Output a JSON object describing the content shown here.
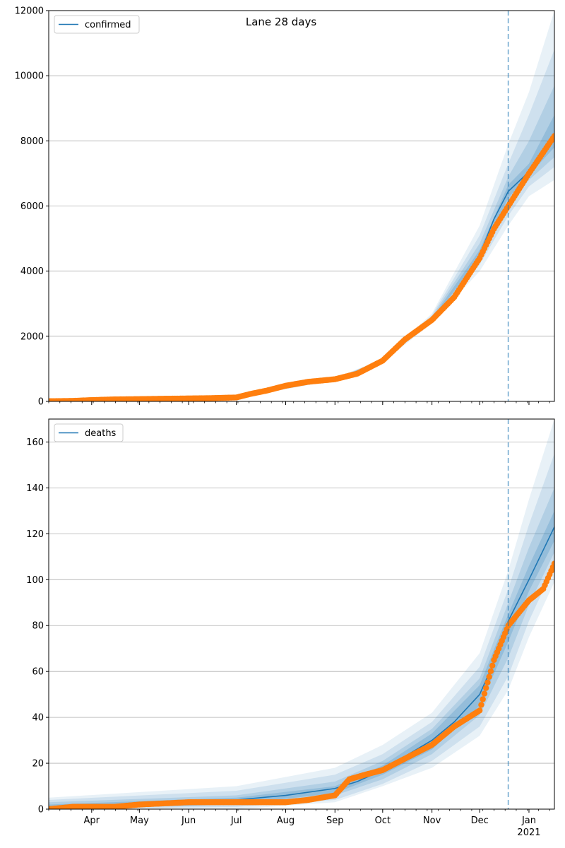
{
  "title": "Lane 28 days",
  "colors": {
    "model": "#1f77b4",
    "observed": "#ff7f0e",
    "band": "#1f77b4",
    "cutoff": "#1f77b4",
    "grid": "#b0b0b0"
  },
  "x_axis": {
    "month_labels": [
      "Apr",
      "May",
      "Jun",
      "Jul",
      "Aug",
      "Sep",
      "Oct",
      "Nov",
      "Dec",
      "Jan"
    ],
    "year_label": "2021"
  },
  "chart_data": [
    {
      "type": "line",
      "legend": "confirmed",
      "legend_position": "top-left",
      "xlim": [
        "2020-03-05",
        "2021-01-17"
      ],
      "ylim": [
        0,
        12000
      ],
      "yticks": [
        0,
        2000,
        4000,
        6000,
        8000,
        10000,
        12000
      ],
      "ytick_labels": [
        "0",
        "2000",
        "4000",
        "6000",
        "8000",
        "10000",
        "12000"
      ],
      "grid": "horizontal",
      "forecast_start": "2020-12-19",
      "observed": {
        "x": [
          "2020-03-05",
          "2020-03-20",
          "2020-04-01",
          "2020-04-15",
          "2020-05-01",
          "2020-05-15",
          "2020-06-01",
          "2020-06-15",
          "2020-07-01",
          "2020-07-10",
          "2020-07-20",
          "2020-08-01",
          "2020-08-15",
          "2020-09-01",
          "2020-09-15",
          "2020-10-01",
          "2020-10-15",
          "2020-11-01",
          "2020-11-15",
          "2020-12-01",
          "2020-12-10",
          "2020-12-19",
          "2021-01-01",
          "2021-01-17"
        ],
        "y": [
          5,
          15,
          40,
          60,
          70,
          80,
          90,
          100,
          120,
          230,
          330,
          480,
          600,
          680,
          850,
          1250,
          1900,
          2500,
          3200,
          4400,
          5300,
          6000,
          7000,
          8150
        ]
      },
      "model": {
        "x": [
          "2020-03-05",
          "2020-04-01",
          "2020-05-01",
          "2020-06-01",
          "2020-07-01",
          "2020-07-15",
          "2020-08-01",
          "2020-08-15",
          "2020-09-01",
          "2020-09-15",
          "2020-10-01",
          "2020-10-15",
          "2020-11-01",
          "2020-11-15",
          "2020-12-01",
          "2020-12-10",
          "2020-12-19",
          "2021-01-01",
          "2021-01-17"
        ],
        "y": [
          5,
          40,
          70,
          90,
          120,
          260,
          480,
          600,
          680,
          850,
          1250,
          1900,
          2500,
          3200,
          4500,
          5600,
          6450,
          7050,
          8200
        ]
      },
      "bands_x": [
        "2020-03-05",
        "2020-07-01",
        "2020-09-01",
        "2020-10-01",
        "2020-11-01",
        "2020-12-01",
        "2020-12-19",
        "2021-01-01",
        "2021-01-17"
      ],
      "bands": [
        {
          "lower": [
            0,
            100,
            650,
            1200,
            2400,
            4000,
            5400,
            6300,
            6800
          ],
          "upper": [
            50,
            160,
            720,
            1300,
            2700,
            5400,
            7900,
            9500,
            12000
          ]
        },
        {
          "lower": [
            0,
            105,
            660,
            1220,
            2440,
            4200,
            5700,
            6600,
            7200
          ],
          "upper": [
            40,
            150,
            710,
            1285,
            2650,
            5100,
            7300,
            8800,
            10800
          ]
        },
        {
          "lower": [
            0,
            110,
            670,
            1235,
            2470,
            4330,
            6000,
            6800,
            7500
          ],
          "upper": [
            30,
            140,
            700,
            1270,
            2600,
            4850,
            6900,
            8000,
            9700
          ]
        },
        {
          "lower": [
            0,
            113,
            675,
            1242,
            2485,
            4420,
            6250,
            6950,
            7800
          ],
          "upper": [
            20,
            130,
            690,
            1260,
            2550,
            4650,
            6650,
            7300,
            8800
          ]
        }
      ]
    },
    {
      "type": "line",
      "legend": "deaths",
      "legend_position": "top-left",
      "xlim": [
        "2020-03-05",
        "2021-01-17"
      ],
      "ylim": [
        0,
        170
      ],
      "yticks": [
        0,
        20,
        40,
        60,
        80,
        100,
        120,
        140,
        160
      ],
      "ytick_labels": [
        "0",
        "20",
        "40",
        "60",
        "80",
        "100",
        "120",
        "140",
        "160"
      ],
      "grid": "horizontal",
      "forecast_start": "2020-12-19",
      "observed": {
        "x": [
          "2020-03-05",
          "2020-03-20",
          "2020-04-15",
          "2020-05-01",
          "2020-06-01",
          "2020-07-01",
          "2020-08-01",
          "2020-08-15",
          "2020-09-01",
          "2020-09-10",
          "2020-09-20",
          "2020-10-01",
          "2020-10-15",
          "2020-11-01",
          "2020-11-15",
          "2020-12-01",
          "2020-12-10",
          "2020-12-19",
          "2021-01-01",
          "2021-01-10",
          "2021-01-17"
        ],
        "y": [
          0,
          1,
          1,
          2,
          3,
          3,
          3,
          4,
          6,
          13,
          15,
          17,
          22,
          28,
          36,
          43,
          65,
          80,
          91,
          96,
          107
        ]
      },
      "model": {
        "x": [
          "2020-03-05",
          "2020-06-01",
          "2020-07-01",
          "2020-08-01",
          "2020-09-01",
          "2020-09-15",
          "2020-10-01",
          "2020-10-15",
          "2020-11-01",
          "2020-11-15",
          "2020-12-01",
          "2020-12-10",
          "2020-12-19",
          "2021-01-01",
          "2021-01-17"
        ],
        "y": [
          1,
          3,
          4,
          6,
          9,
          12,
          17,
          23,
          30,
          38,
          50,
          64,
          82,
          100,
          123
        ]
      },
      "bands_x": [
        "2020-03-05",
        "2020-07-01",
        "2020-09-01",
        "2020-10-01",
        "2020-11-01",
        "2020-12-01",
        "2020-12-19",
        "2021-01-01",
        "2021-01-17"
      ],
      "bands": [
        {
          "lower": [
            0,
            0,
            3,
            10,
            18,
            32,
            52,
            75,
            99
          ],
          "upper": [
            5,
            10,
            18,
            28,
            42,
            68,
            104,
            135,
            170
          ]
        },
        {
          "lower": [
            0,
            1,
            4,
            11,
            21,
            36,
            58,
            82,
            106
          ],
          "upper": [
            4,
            8,
            15,
            24,
            38,
            62,
            96,
            124,
            155
          ]
        },
        {
          "lower": [
            0,
            2,
            6,
            13,
            24,
            41,
            66,
            89,
            112
          ],
          "upper": [
            3,
            6,
            12,
            21,
            35,
            57,
            90,
            114,
            140
          ]
        },
        {
          "lower": [
            0,
            2,
            7,
            15,
            26,
            45,
            73,
            95,
            117
          ],
          "upper": [
            2,
            5,
            10,
            19,
            33,
            54,
            85,
            106,
            130
          ]
        }
      ]
    }
  ]
}
